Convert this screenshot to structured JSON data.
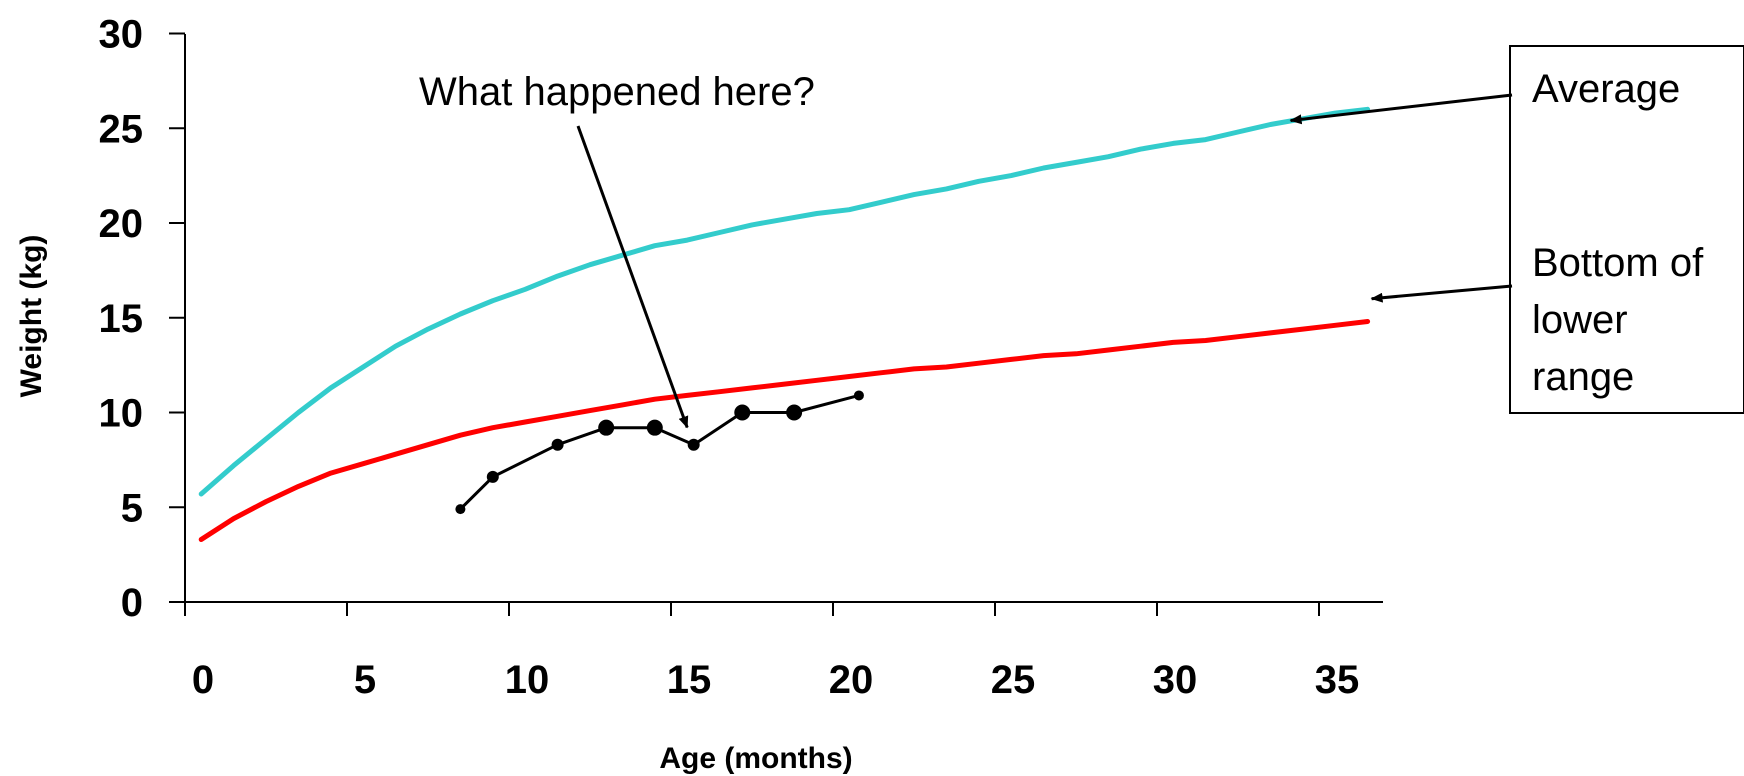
{
  "chart_data": {
    "type": "line",
    "title": "",
    "xlabel": "Age (months)",
    "ylabel": "Weight (kg)",
    "xlim": [
      0,
      37
    ],
    "ylim": [
      0,
      30
    ],
    "x_ticks": [
      0,
      5,
      10,
      15,
      20,
      25,
      30,
      35
    ],
    "y_ticks": [
      0,
      5,
      10,
      15,
      20,
      25,
      30
    ],
    "x_tick_labels": [
      "0",
      "5",
      "10",
      "15",
      "20",
      "25",
      "30",
      "35"
    ],
    "y_tick_labels": [
      "0",
      "5",
      "10",
      "15",
      "20",
      "25",
      "30"
    ],
    "grid": false,
    "series": [
      {
        "name": "Average",
        "color": "#33CCCC",
        "x": [
          0.5,
          1.5,
          2.5,
          3.5,
          4.5,
          5.5,
          6.5,
          7.5,
          8.5,
          9.5,
          10.5,
          11.5,
          12.5,
          13.5,
          14.5,
          15.5,
          16.5,
          17.5,
          18.5,
          19.5,
          20.5,
          21.5,
          22.5,
          23.5,
          24.5,
          25.5,
          26.5,
          27.5,
          28.5,
          29.5,
          30.5,
          31.5,
          32.5,
          33.5,
          34.5,
          35.5,
          36.5
        ],
        "values": [
          5.7,
          7.2,
          8.6,
          10.0,
          11.3,
          12.4,
          13.5,
          14.4,
          15.2,
          15.9,
          16.5,
          17.2,
          17.8,
          18.3,
          18.8,
          19.1,
          19.5,
          19.9,
          20.2,
          20.5,
          20.7,
          21.1,
          21.5,
          21.8,
          22.2,
          22.5,
          22.9,
          23.2,
          23.5,
          23.9,
          24.2,
          24.4,
          24.8,
          25.2,
          25.5,
          25.8,
          26.0
        ]
      },
      {
        "name": "Bottom of lower range",
        "color": "#FF0000",
        "x": [
          0.5,
          1.5,
          2.5,
          3.5,
          4.5,
          5.5,
          6.5,
          7.5,
          8.5,
          9.5,
          10.5,
          11.5,
          12.5,
          13.5,
          14.5,
          15.5,
          16.5,
          17.5,
          18.5,
          19.5,
          20.5,
          21.5,
          22.5,
          23.5,
          24.5,
          25.5,
          26.5,
          27.5,
          28.5,
          29.5,
          30.5,
          31.5,
          32.5,
          33.5,
          34.5,
          35.5,
          36.5
        ],
        "values": [
          3.3,
          4.4,
          5.3,
          6.1,
          6.8,
          7.3,
          7.8,
          8.3,
          8.8,
          9.2,
          9.5,
          9.8,
          10.1,
          10.4,
          10.7,
          10.9,
          11.1,
          11.3,
          11.5,
          11.7,
          11.9,
          12.1,
          12.3,
          12.4,
          12.6,
          12.8,
          13.0,
          13.1,
          13.3,
          13.5,
          13.7,
          13.8,
          14.0,
          14.2,
          14.4,
          14.6,
          14.8
        ]
      },
      {
        "name": "",
        "color": "#000000",
        "x": [
          8.5,
          9.5,
          11.5,
          13.0,
          14.5,
          15.7,
          17.2,
          18.8,
          20.8
        ],
        "values": [
          4.9,
          6.6,
          8.3,
          9.2,
          9.2,
          8.3,
          10.0,
          10.0,
          10.9
        ],
        "marker_sizes": [
          5,
          6,
          6,
          8,
          8,
          6,
          8,
          8,
          5
        ]
      }
    ],
    "annotations": [
      {
        "text": "What happened here?",
        "target": {
          "x": 15.5,
          "y": 9.0
        }
      }
    ],
    "legend_boxes": [
      {
        "lines": [
          "Average"
        ],
        "target_series": "Average",
        "target": {
          "x": 34.0,
          "y": 25.3
        }
      },
      {
        "lines": [
          "Bottom of",
          "lower",
          "range"
        ],
        "target_series": "Bottom of lower range",
        "target": {
          "x": 36.5,
          "y": 15.9
        }
      }
    ]
  }
}
